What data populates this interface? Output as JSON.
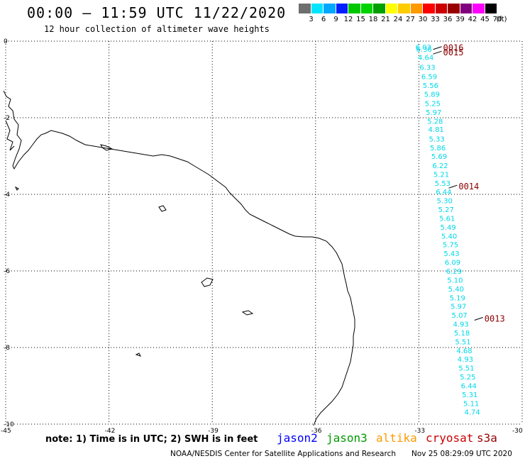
{
  "header": {
    "title": "00:00 – 11:59 UTC 11/22/2020",
    "subtitle": "12 hour collection of altimeter wave heights"
  },
  "legend": {
    "unit": "(ft)",
    "bins": [
      {
        "label": "3",
        "color": "#6e6e6e"
      },
      {
        "label": "6",
        "color": "#00e5ff"
      },
      {
        "label": "9",
        "color": "#00a8ff"
      },
      {
        "label": "12",
        "color": "#0020ff"
      },
      {
        "label": "15",
        "color": "#00c800"
      },
      {
        "label": "18",
        "color": "#00d400"
      },
      {
        "label": "21",
        "color": "#00a000"
      },
      {
        "label": "24",
        "color": "#ffff00"
      },
      {
        "label": "27",
        "color": "#ffcc00"
      },
      {
        "label": "30",
        "color": "#ff9900"
      },
      {
        "label": "33",
        "color": "#ff0000"
      },
      {
        "label": "36",
        "color": "#cc0000"
      },
      {
        "label": "39",
        "color": "#990000"
      },
      {
        "label": "42",
        "color": "#800080"
      },
      {
        "label": "45",
        "color": "#ff00ff"
      },
      {
        "label": "70",
        "color": "#000000"
      }
    ]
  },
  "axes": {
    "lon_ticks": [
      "-45",
      "-42",
      "-39",
      "-36",
      "-33",
      "-30"
    ],
    "lat_ticks": [
      "0",
      "-2",
      "-4",
      "-6",
      "-8",
      "-10"
    ],
    "lon_range": [
      -45,
      -30
    ],
    "lat_range": [
      0,
      -10
    ]
  },
  "track": {
    "color": "#00d8e8",
    "points": [
      {
        "lat": -0.15,
        "lon": -32.87,
        "v": "6.03"
      },
      {
        "lat": -0.2,
        "lon": -32.85,
        "v": "6.36"
      },
      {
        "lat": -0.42,
        "lon": -32.8,
        "v": "4.64"
      },
      {
        "lat": -0.68,
        "lon": -32.75,
        "v": "6.33"
      },
      {
        "lat": -0.92,
        "lon": -32.7,
        "v": "6.59"
      },
      {
        "lat": -1.15,
        "lon": -32.66,
        "v": "5.56"
      },
      {
        "lat": -1.38,
        "lon": -32.62,
        "v": "5.89"
      },
      {
        "lat": -1.62,
        "lon": -32.6,
        "v": "5.25"
      },
      {
        "lat": -1.85,
        "lon": -32.57,
        "v": "5.97"
      },
      {
        "lat": -2.08,
        "lon": -32.53,
        "v": "5.28"
      },
      {
        "lat": -2.3,
        "lon": -32.5,
        "v": "4.81"
      },
      {
        "lat": -2.55,
        "lon": -32.48,
        "v": "5.33"
      },
      {
        "lat": -2.78,
        "lon": -32.45,
        "v": "5.86"
      },
      {
        "lat": -3.0,
        "lon": -32.41,
        "v": "5.69"
      },
      {
        "lat": -3.24,
        "lon": -32.38,
        "v": "6.22"
      },
      {
        "lat": -3.47,
        "lon": -32.35,
        "v": "5.21"
      },
      {
        "lat": -3.7,
        "lon": -32.31,
        "v": "5.53"
      },
      {
        "lat": -3.93,
        "lon": -32.28,
        "v": "6.44"
      },
      {
        "lat": -4.16,
        "lon": -32.25,
        "v": "5.30"
      },
      {
        "lat": -4.39,
        "lon": -32.21,
        "v": "5.27"
      },
      {
        "lat": -4.62,
        "lon": -32.18,
        "v": "5.61"
      },
      {
        "lat": -4.85,
        "lon": -32.15,
        "v": "5.49"
      },
      {
        "lat": -5.08,
        "lon": -32.12,
        "v": "5.40"
      },
      {
        "lat": -5.31,
        "lon": -32.08,
        "v": "5.75"
      },
      {
        "lat": -5.54,
        "lon": -32.05,
        "v": "5.43"
      },
      {
        "lat": -5.77,
        "lon": -32.02,
        "v": "6.09"
      },
      {
        "lat": -6.0,
        "lon": -31.98,
        "v": "6.29"
      },
      {
        "lat": -6.23,
        "lon": -31.95,
        "v": "5.10"
      },
      {
        "lat": -6.46,
        "lon": -31.92,
        "v": "5.40"
      },
      {
        "lat": -6.69,
        "lon": -31.88,
        "v": "5.19"
      },
      {
        "lat": -6.92,
        "lon": -31.85,
        "v": "5.97"
      },
      {
        "lat": -7.15,
        "lon": -31.82,
        "v": "5.07"
      },
      {
        "lat": -7.38,
        "lon": -31.78,
        "v": "4.93"
      },
      {
        "lat": -7.61,
        "lon": -31.75,
        "v": "5.18"
      },
      {
        "lat": -7.84,
        "lon": -31.72,
        "v": "5.51"
      },
      {
        "lat": -8.07,
        "lon": -31.68,
        "v": "4.68"
      },
      {
        "lat": -8.3,
        "lon": -31.65,
        "v": "4.93"
      },
      {
        "lat": -8.53,
        "lon": -31.62,
        "v": "5.51"
      },
      {
        "lat": -8.76,
        "lon": -31.58,
        "v": "5.25"
      },
      {
        "lat": -8.99,
        "lon": -31.55,
        "v": "6.44"
      },
      {
        "lat": -9.22,
        "lon": -31.52,
        "v": "5.31"
      },
      {
        "lat": -9.45,
        "lon": -31.48,
        "v": "5.11"
      },
      {
        "lat": -9.68,
        "lon": -31.45,
        "v": "4.74"
      }
    ]
  },
  "time_marks": [
    {
      "label": "0016",
      "lat": -0.18,
      "lon": -32.75,
      "color": "#8b0000"
    },
    {
      "label": "0015",
      "lat": -0.3,
      "lon": -32.75,
      "color": "#8b0000"
    },
    {
      "label": "0014",
      "lat": -3.8,
      "lon": -32.3,
      "color": "#8b0000"
    },
    {
      "label": "0013",
      "lat": -7.25,
      "lon": -31.55,
      "color": "#8b0000"
    }
  ],
  "footer": {
    "note": "note: 1) Time is in UTC; 2) SWH is in feet",
    "satellites": [
      {
        "name": "jason2",
        "color": "#0000ff"
      },
      {
        "name": "jason3",
        "color": "#009900"
      },
      {
        "name": "altika",
        "color": "#ff9900"
      },
      {
        "name": "cryosat",
        "color": "#cc0000"
      },
      {
        "name": "s3a",
        "color": "#990000"
      }
    ],
    "credit": "NOAA/NESDIS Center for Satellite Applications and Research",
    "generated": "Nov 25 08:29:09 UTC 2020"
  }
}
